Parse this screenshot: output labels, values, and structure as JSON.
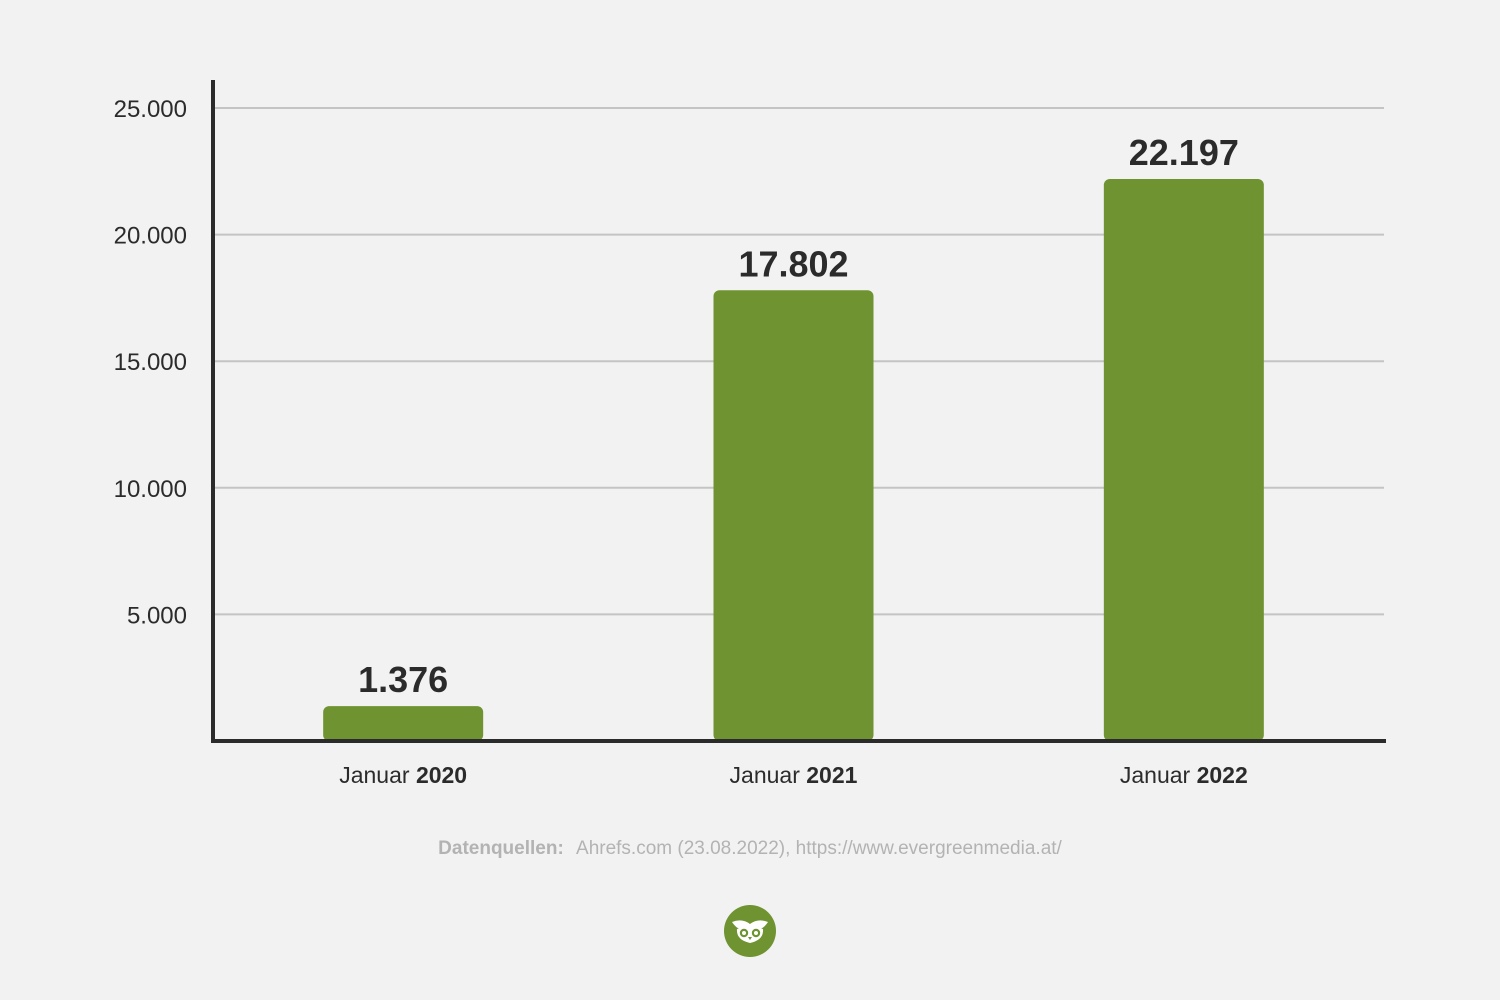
{
  "chart_data": {
    "type": "bar",
    "categories": [
      {
        "prefix": "Januar",
        "year": "2020"
      },
      {
        "prefix": "Januar",
        "year": "2021"
      },
      {
        "prefix": "Januar",
        "year": "2022"
      }
    ],
    "values": [
      1376,
      17802,
      22197
    ],
    "value_labels": [
      "1.376",
      "17.802",
      "22.197"
    ],
    "y_ticks": [
      5000,
      10000,
      15000,
      20000,
      25000
    ],
    "y_tick_labels": [
      "5.000",
      "10.000",
      "15.000",
      "20.000",
      "25.000"
    ],
    "ylim": [
      0,
      25000
    ],
    "grid": true,
    "bar_color": "#6f9330",
    "title": "",
    "xlabel": "",
    "ylabel": ""
  },
  "source": {
    "label": "Datenquellen:",
    "text": "Ahrefs.com (23.08.2022), https://www.evergreenmedia.at/"
  },
  "logo": {
    "icon": "owl-icon",
    "color": "#6f9330"
  }
}
